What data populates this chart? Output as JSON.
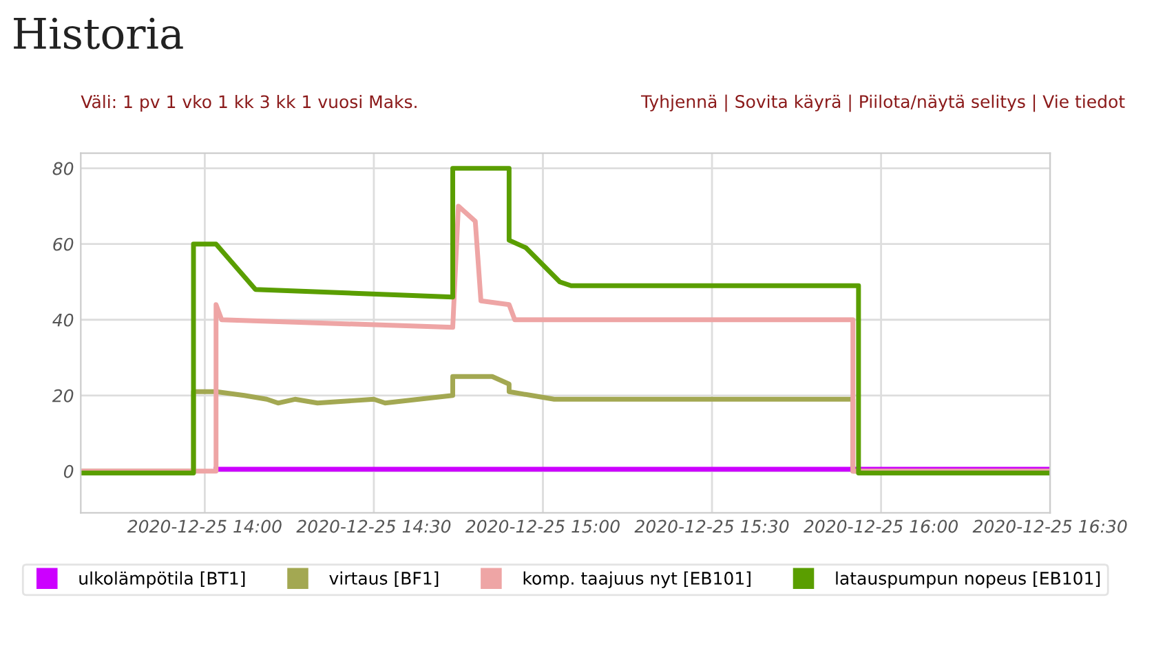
{
  "chart_data": {
    "type": "line",
    "title": "Historia",
    "annotations": [
      "Väli: 1 pv 1 vko 1 kk 3 kk 1 vuosi Maks.",
      "Tyhjennä | Sovita käyrä | Piilota/näytä selitys | Vie tiedot"
    ],
    "series": [
      {
        "name": "ulkolämpötila [BT1]",
        "color": "#cc00ff",
        "x": [
          "2020-12-25T14:02",
          "2020-12-25T15:56",
          "2020-12-25T16:30"
        ],
        "values": [
          0.5,
          0.5,
          0.5
        ]
      },
      {
        "name": "virtaus [BF1]",
        "color": "#a3a852",
        "x": [
          "2020-12-25T13:38",
          "2020-12-25T13:58",
          "2020-12-25T13:58",
          "2020-12-25T14:02",
          "2020-12-25T14:07",
          "2020-12-25T14:11",
          "2020-12-25T14:13",
          "2020-12-25T14:16",
          "2020-12-25T14:20",
          "2020-12-25T14:30",
          "2020-12-25T14:32",
          "2020-12-25T14:44",
          "2020-12-25T14:44",
          "2020-12-25T14:48",
          "2020-12-25T14:51",
          "2020-12-25T14:54",
          "2020-12-25T14:54",
          "2020-12-25T14:58",
          "2020-12-25T15:02",
          "2020-12-25T15:55",
          "2020-12-25T15:55",
          "2020-12-25T16:30"
        ],
        "values": [
          0,
          0,
          21,
          21,
          20,
          19,
          18,
          19,
          18,
          19,
          18,
          20,
          25,
          25,
          25,
          23,
          21,
          20,
          19,
          19,
          0,
          0
        ]
      },
      {
        "name": "komp. taajuus nyt [EB101]",
        "color": "#eea5a5",
        "x": [
          "2020-12-25T13:38",
          "2020-12-25T14:02",
          "2020-12-25T14:02",
          "2020-12-25T14:03",
          "2020-12-25T14:44",
          "2020-12-25T14:45",
          "2020-12-25T14:48",
          "2020-12-25T14:49",
          "2020-12-25T14:54",
          "2020-12-25T14:55",
          "2020-12-25T15:55",
          "2020-12-25T15:55",
          "2020-12-25T16:30"
        ],
        "values": [
          0,
          0,
          44,
          40,
          38,
          70,
          66,
          45,
          44,
          40,
          40,
          0,
          0
        ]
      },
      {
        "name": "latauspumpun nopeus [EB101]",
        "color": "#5a9e00",
        "x": [
          "2020-12-25T13:38",
          "2020-12-25T13:58",
          "2020-12-25T13:58",
          "2020-12-25T14:02",
          "2020-12-25T14:09",
          "2020-12-25T14:44",
          "2020-12-25T14:44",
          "2020-12-25T14:54",
          "2020-12-25T14:54",
          "2020-12-25T14:57",
          "2020-12-25T15:01",
          "2020-12-25T15:03",
          "2020-12-25T15:05",
          "2020-12-25T15:56",
          "2020-12-25T15:56",
          "2020-12-25T16:30"
        ],
        "values": [
          -0.5,
          -0.5,
          60,
          60,
          48,
          46,
          80,
          80,
          61,
          59,
          53,
          50,
          49,
          49,
          -0.5,
          -0.5
        ]
      }
    ],
    "xlim": [
      "2020-12-25T13:38",
      "2020-12-25T16:30"
    ],
    "xticks": [
      {
        "value": "2020-12-25T14:00",
        "label": "2020-12-25 14:00"
      },
      {
        "value": "2020-12-25T14:30",
        "label": "2020-12-25 14:30"
      },
      {
        "value": "2020-12-25T15:00",
        "label": "2020-12-25 15:00"
      },
      {
        "value": "2020-12-25T15:30",
        "label": "2020-12-25 15:30"
      },
      {
        "value": "2020-12-25T16:00",
        "label": "2020-12-25 16:00"
      },
      {
        "value": "2020-12-25T16:30",
        "label": "2020-12-25 16:30"
      }
    ],
    "ylim": [
      -11,
      84
    ],
    "yticks": [
      0,
      20,
      40,
      60,
      80
    ],
    "grid": true,
    "legend": "bottom",
    "marker": "none",
    "line_style": "solid"
  }
}
